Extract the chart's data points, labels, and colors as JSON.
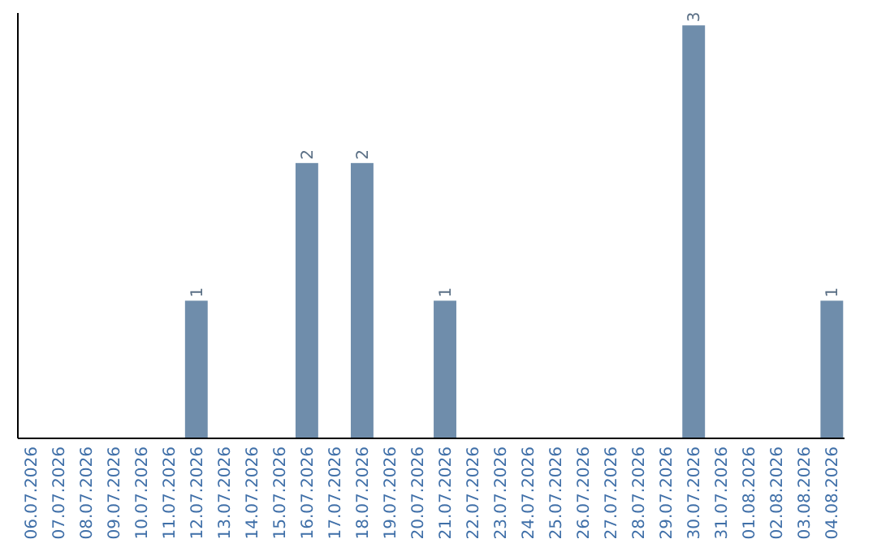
{
  "chart_data": {
    "type": "bar",
    "categories": [
      "06.07.2026",
      "07.07.2026",
      "08.07.2026",
      "09.07.2026",
      "10.07.2026",
      "11.07.2026",
      "12.07.2026",
      "13.07.2026",
      "14.07.2026",
      "15.07.2026",
      "16.07.2026",
      "17.07.2026",
      "18.07.2026",
      "19.07.2026",
      "20.07.2026",
      "21.07.2026",
      "22.07.2026",
      "23.07.2026",
      "24.07.2026",
      "25.07.2026",
      "26.07.2026",
      "27.07.2026",
      "28.07.2026",
      "29.07.2026",
      "30.07.2026",
      "31.07.2026",
      "01.08.2026",
      "02.08.2026",
      "03.08.2026",
      "04.08.2026"
    ],
    "values": [
      0,
      0,
      0,
      0,
      0,
      0,
      1,
      0,
      0,
      0,
      2,
      0,
      2,
      0,
      0,
      1,
      0,
      0,
      0,
      0,
      0,
      0,
      0,
      0,
      3,
      0,
      0,
      0,
      0,
      1
    ],
    "value_labels": [
      null,
      null,
      null,
      null,
      null,
      null,
      "1",
      null,
      null,
      null,
      "2",
      null,
      "2",
      null,
      null,
      "1",
      null,
      null,
      null,
      null,
      null,
      null,
      null,
      null,
      "3",
      null,
      null,
      null,
      null,
      "1"
    ],
    "color": "#6f8dab"
  }
}
